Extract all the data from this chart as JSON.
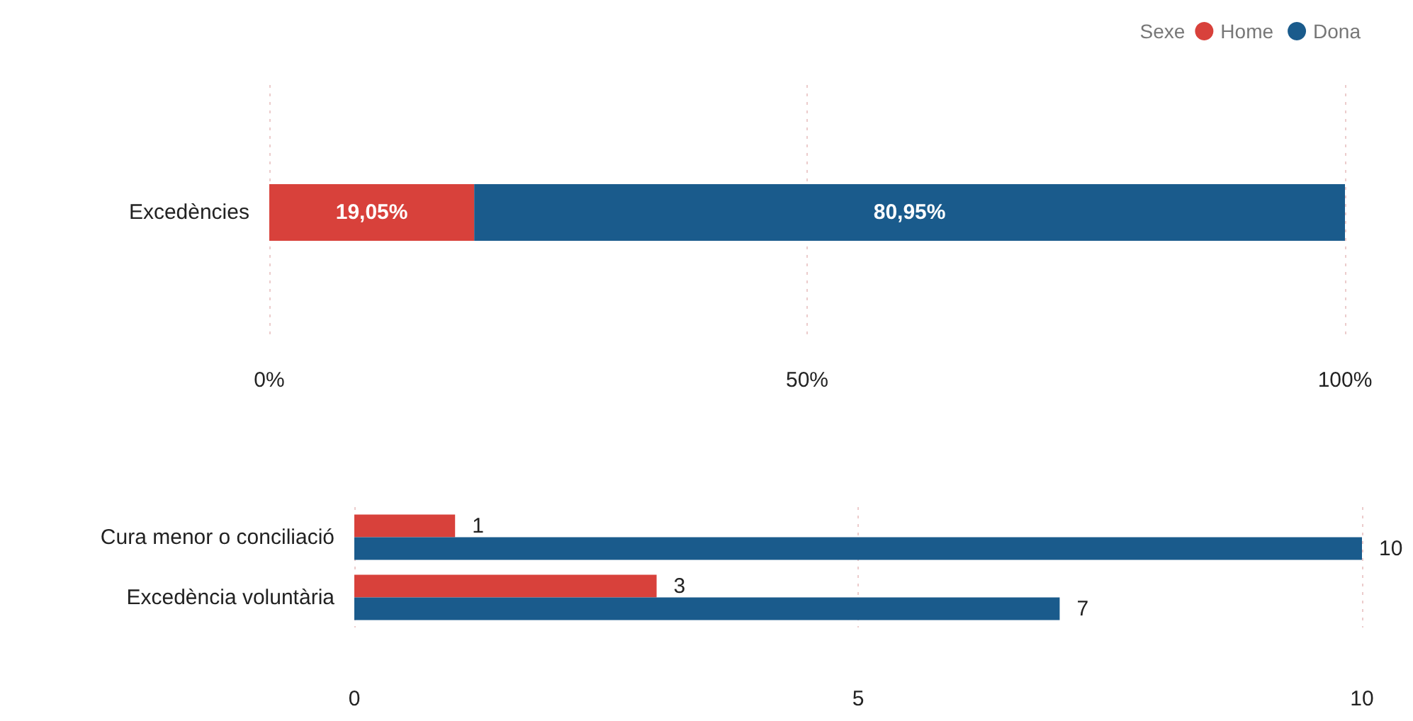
{
  "chart_data": [
    {
      "type": "bar",
      "orientation": "horizontal",
      "stacked": true,
      "categories": [
        "Excedències"
      ],
      "series": [
        {
          "name": "Home",
          "color": "#d8413b",
          "values": [
            19.05
          ],
          "value_labels": [
            "19,05%"
          ]
        },
        {
          "name": "Dona",
          "color": "#1a5b8c",
          "values": [
            80.95
          ],
          "value_labels": [
            "80,95%"
          ]
        }
      ],
      "xlim": [
        0,
        100
      ],
      "xticks": [
        {
          "value": 0,
          "label": "0%"
        },
        {
          "value": 50,
          "label": "50%"
        },
        {
          "value": 100,
          "label": "100%"
        }
      ],
      "grid": "x",
      "legend": "top right",
      "legend_title": "Sexe"
    },
    {
      "type": "bar",
      "orientation": "horizontal",
      "categories": [
        "Cura menor o conciliació",
        "Excedència voluntària"
      ],
      "series": [
        {
          "color": "#d8413b",
          "values": [
            1,
            3
          ]
        },
        {
          "color": "#1a5b8c",
          "values": [
            10,
            7
          ]
        }
      ],
      "xlim": [
        0,
        10
      ],
      "xticks": [
        0,
        5,
        10
      ],
      "grid": "x",
      "data_labels": true
    }
  ]
}
